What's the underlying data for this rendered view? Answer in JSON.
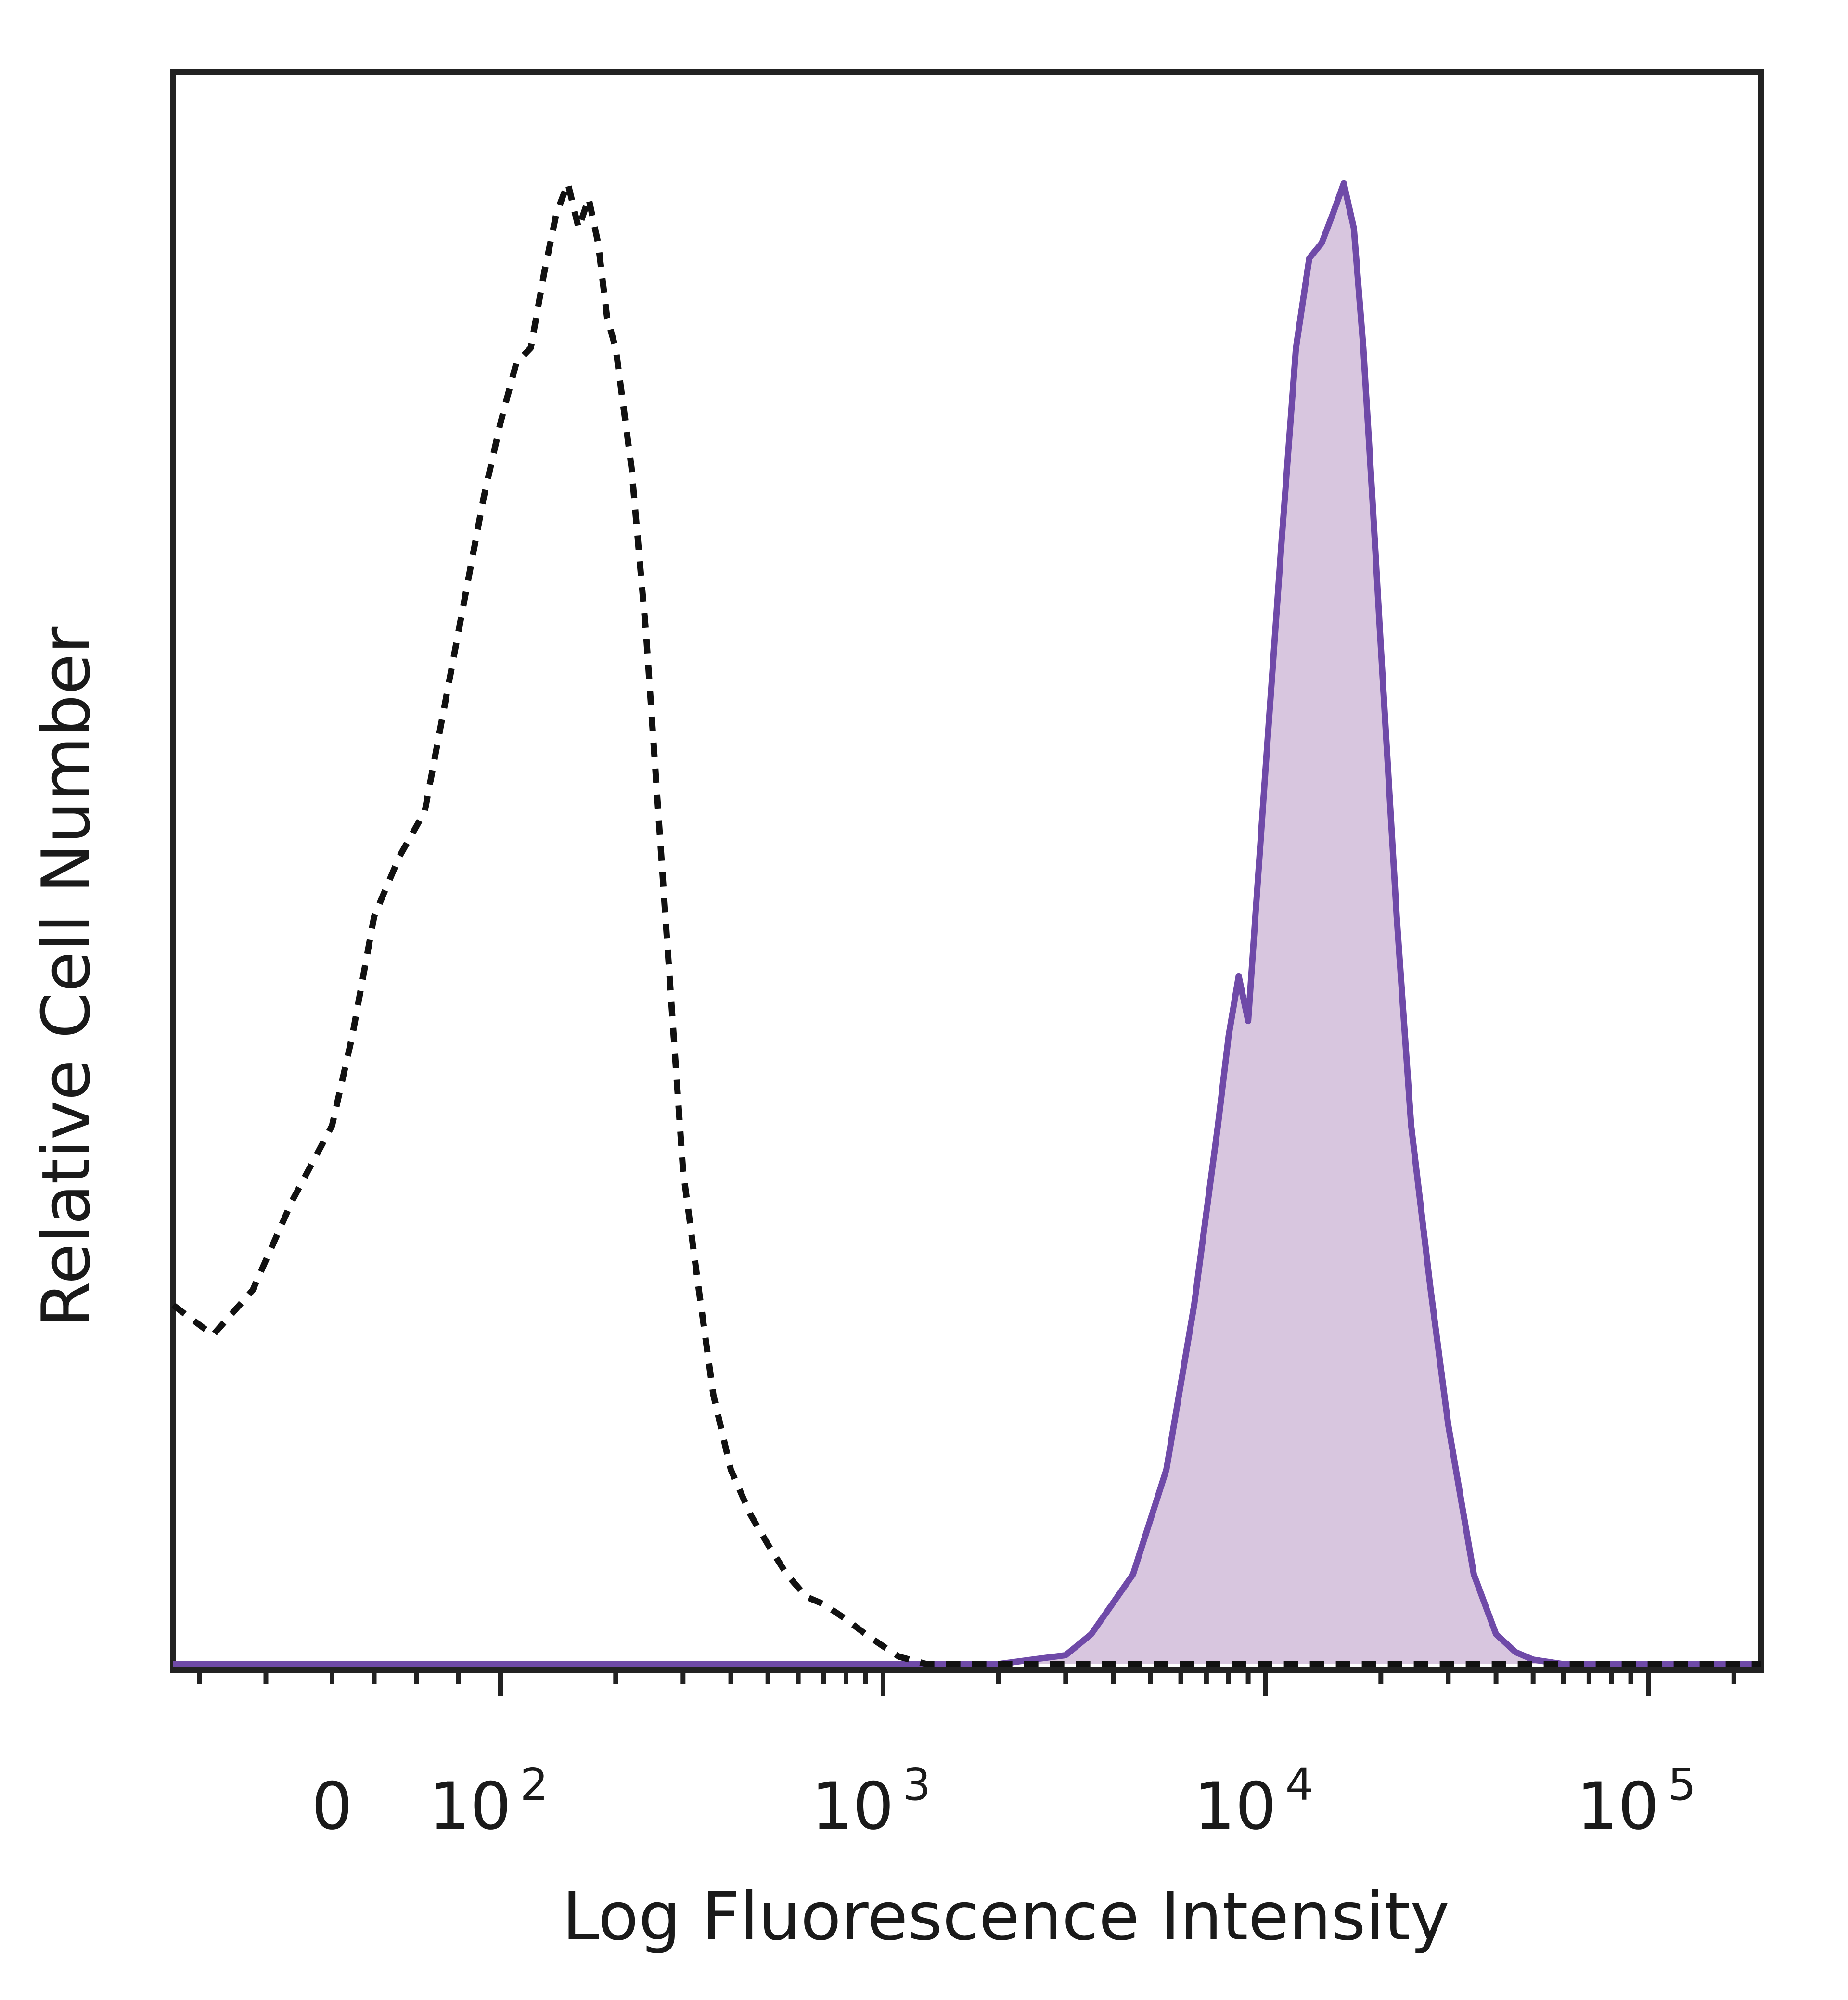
{
  "chart_data": {
    "type": "area",
    "title": "",
    "xlabel": "Log Fluorescence Intensity",
    "ylabel": "Relative Cell Number",
    "x_scale": "biexponential (log decades)",
    "xlim": [
      -60,
      250000
    ],
    "ylim": [
      0,
      1
    ],
    "grid": false,
    "legend": "none",
    "x_ticks": [
      {
        "value": 0,
        "base": "0",
        "exp": ""
      },
      {
        "value": 100,
        "base": "10",
        "exp": "2"
      },
      {
        "value": 1000,
        "base": "10",
        "exp": "3"
      },
      {
        "value": 10000,
        "base": "10",
        "exp": "4"
      },
      {
        "value": 100000,
        "base": "10",
        "exp": "5"
      }
    ],
    "series": [
      {
        "style": "dashed",
        "color": "#111111",
        "fill": "none",
        "x": [
          -60,
          -45,
          -30,
          -15,
          0,
          12,
          25,
          40,
          55,
          70,
          80,
          90,
          100,
          110,
          120,
          130,
          140,
          150,
          160,
          170,
          180,
          190,
          200,
          220,
          240,
          260,
          280,
          300,
          330,
          360,
          400,
          450,
          500,
          560,
          630,
          700,
          800,
          900,
          1000,
          1100,
          1300,
          1500,
          1800,
          2200,
          3000,
          5000,
          10000,
          50000,
          250000
        ],
        "y": [
          0.24,
          0.22,
          0.25,
          0.31,
          0.36,
          0.42,
          0.5,
          0.54,
          0.57,
          0.66,
          0.72,
          0.78,
          0.83,
          0.87,
          0.88,
          0.93,
          0.97,
          0.99,
          0.96,
          0.98,
          0.95,
          0.9,
          0.88,
          0.8,
          0.69,
          0.56,
          0.44,
          0.33,
          0.25,
          0.18,
          0.13,
          0.1,
          0.08,
          0.06,
          0.045,
          0.04,
          0.03,
          0.02,
          0.012,
          0.005,
          0.0,
          0.0,
          0.0,
          0.0,
          0.0,
          0.0,
          0.0,
          0.0,
          0.0
        ]
      },
      {
        "style": "solid",
        "color": "#6f4aa8",
        "fill": "#d8c6df",
        "x": [
          -60,
          0,
          100,
          1000,
          2000,
          3000,
          3500,
          4500,
          5500,
          6500,
          7500,
          8000,
          8500,
          9000,
          10000,
          11000,
          12000,
          13000,
          14000,
          15000,
          16000,
          17000,
          18000,
          19000,
          20000,
          22000,
          24000,
          27000,
          30000,
          35000,
          40000,
          45000,
          50000,
          60000,
          80000,
          250000
        ],
        "y": [
          0.0,
          0.0,
          0.0,
          0.0,
          0.0,
          0.006,
          0.02,
          0.06,
          0.13,
          0.24,
          0.36,
          0.42,
          0.46,
          0.43,
          0.6,
          0.75,
          0.88,
          0.94,
          0.95,
          0.97,
          0.99,
          0.96,
          0.88,
          0.78,
          0.68,
          0.5,
          0.36,
          0.25,
          0.16,
          0.06,
          0.02,
          0.008,
          0.003,
          0.0,
          0.0,
          0.0
        ]
      }
    ]
  }
}
